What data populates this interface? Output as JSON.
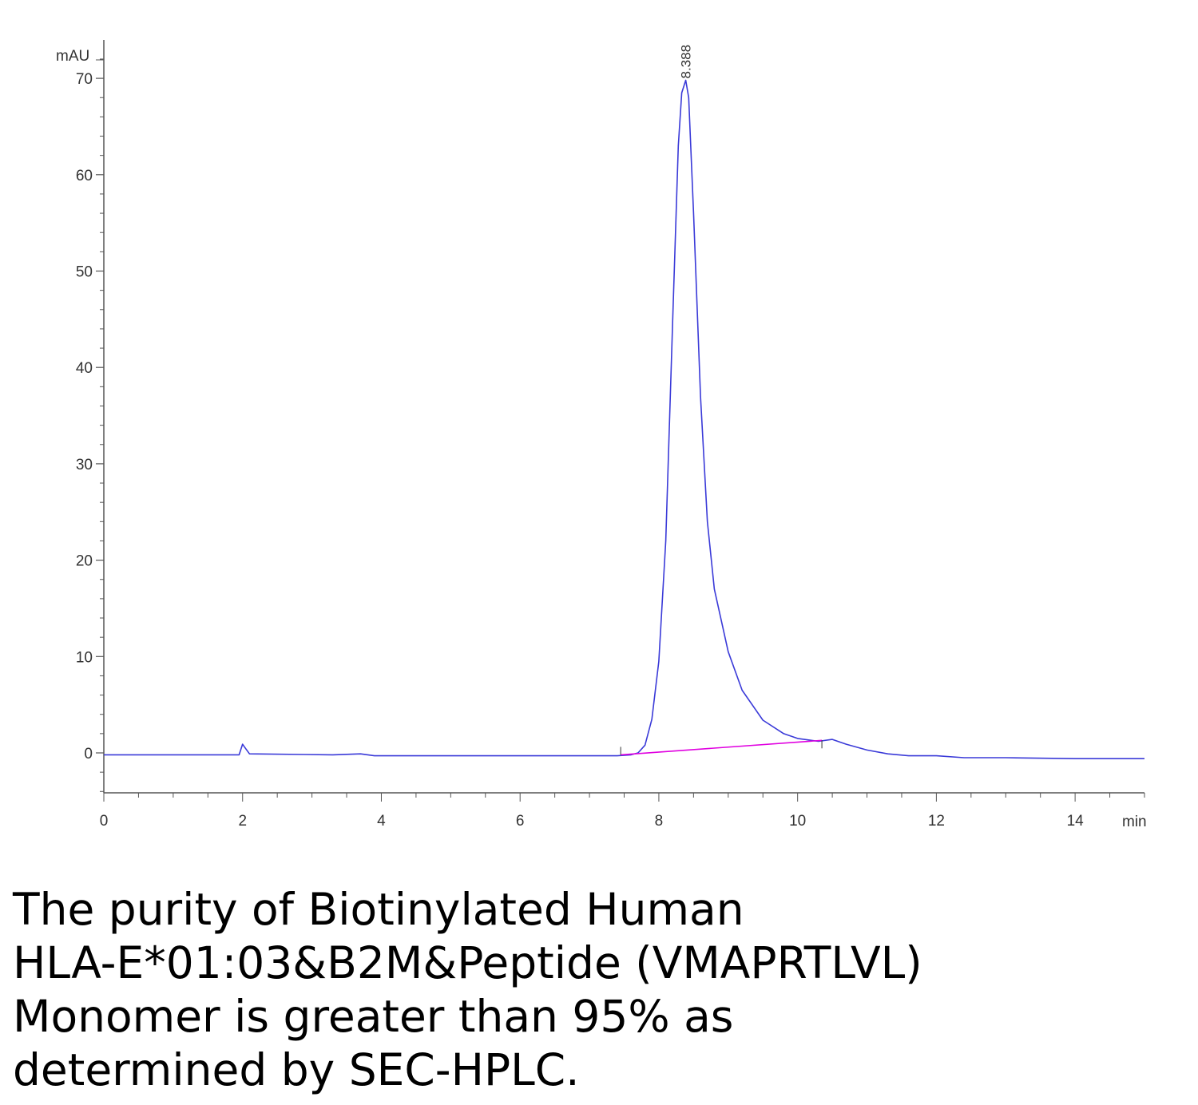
{
  "chart_data": {
    "type": "line",
    "title": "",
    "xlabel": "",
    "ylabel": "",
    "x_unit": "min",
    "y_unit": "mAU",
    "xlim": [
      0,
      15
    ],
    "ylim": [
      -4,
      74
    ],
    "x_ticks": [
      "0",
      "2",
      "4",
      "6",
      "8",
      "10",
      "12",
      "14"
    ],
    "y_ticks": [
      "0",
      "10",
      "20",
      "30",
      "40",
      "50",
      "60",
      "70"
    ],
    "grid": false,
    "legend": "none",
    "peak_annotation": "8.388",
    "series": [
      {
        "color": "#3a3ad8",
        "x": [
          0,
          1.0,
          1.95,
          2.0,
          2.03,
          2.1,
          3.3,
          3.7,
          3.9,
          5.0,
          6.0,
          7.0,
          7.4,
          7.6,
          7.7,
          7.8,
          7.9,
          8.0,
          8.1,
          8.2,
          8.28,
          8.33,
          8.388,
          8.43,
          8.5,
          8.6,
          8.7,
          8.8,
          9.0,
          9.2,
          9.5,
          9.8,
          10.0,
          10.3,
          10.5,
          10.7,
          11.0,
          11.3,
          11.6,
          12.0,
          12.4,
          13.0,
          14.0,
          15.0
        ],
        "y": [
          -0.2,
          -0.2,
          -0.2,
          0.9,
          0.6,
          -0.1,
          -0.2,
          -0.1,
          -0.3,
          -0.3,
          -0.3,
          -0.3,
          -0.3,
          -0.2,
          0.0,
          0.8,
          3.5,
          9.5,
          22.0,
          45.0,
          63.0,
          68.5,
          69.8,
          68.0,
          56.0,
          37.0,
          24.0,
          17.0,
          10.5,
          6.5,
          3.4,
          2.0,
          1.5,
          1.2,
          1.4,
          0.9,
          0.3,
          -0.1,
          -0.3,
          -0.3,
          -0.5,
          -0.5,
          -0.6,
          -0.6
        ]
      },
      {
        "color": "#e000e0",
        "x": [
          7.45,
          10.35
        ],
        "y": [
          -0.2,
          1.3
        ]
      }
    ]
  },
  "caption": [
    "The purity of Biotinylated Human",
    "HLA-E*01:03&B2M&Peptide (VMAPRTLVL)",
    "Monomer is greater than 95% as",
    "determined by SEC-HPLC."
  ]
}
